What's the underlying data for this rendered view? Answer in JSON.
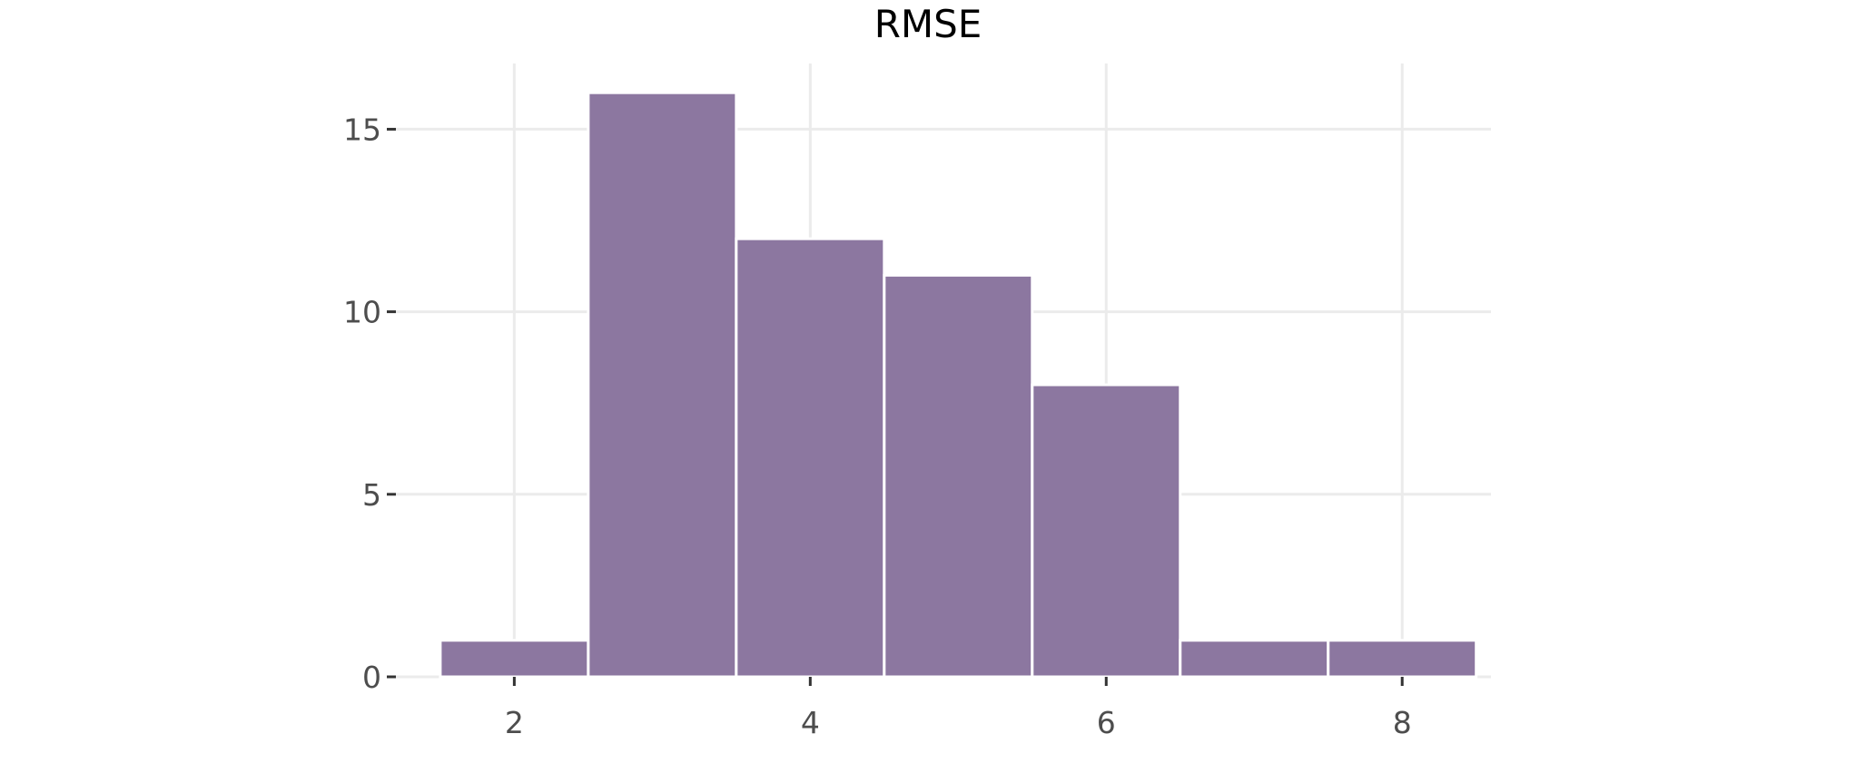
{
  "chart_data": {
    "type": "bar",
    "title": "RMSE",
    "xlabel": "",
    "ylabel": "",
    "bins": [
      {
        "x_start": 1.5,
        "x_end": 2.5,
        "count": 1
      },
      {
        "x_start": 2.5,
        "x_end": 3.5,
        "count": 16
      },
      {
        "x_start": 3.5,
        "x_end": 4.5,
        "count": 12
      },
      {
        "x_start": 4.5,
        "x_end": 5.5,
        "count": 11
      },
      {
        "x_start": 5.5,
        "x_end": 6.5,
        "count": 8
      },
      {
        "x_start": 6.5,
        "x_end": 7.5,
        "count": 1
      },
      {
        "x_start": 7.5,
        "x_end": 8.5,
        "count": 1
      }
    ],
    "xticks": [
      2,
      4,
      6,
      8
    ],
    "yticks": [
      0,
      5,
      10,
      15
    ],
    "xlim": [
      1.2,
      8.6
    ],
    "ylim": [
      0,
      16.8
    ],
    "grid": true,
    "bar_color": "#8c77a0",
    "bar_edge_color": "#ffffff",
    "grid_color": "#ebebeb"
  }
}
